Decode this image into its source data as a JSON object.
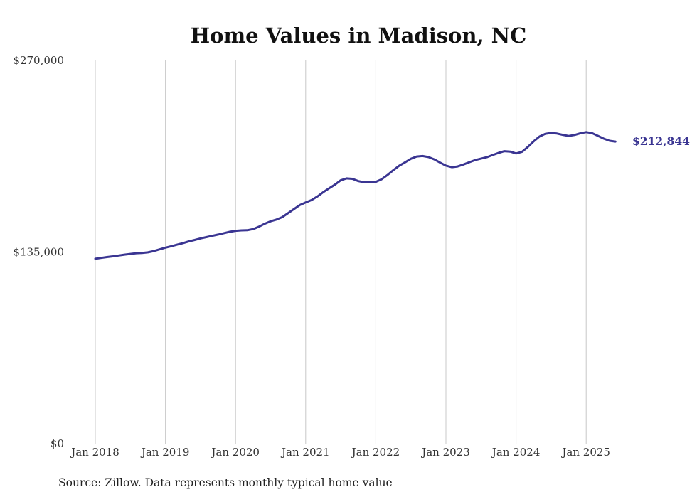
{
  "chart_data": {
    "type": "line",
    "title": "Home Values in Madison, NC",
    "source": "Source: Zillow. Data represents monthly typical home value",
    "ylim": [
      0,
      270000
    ],
    "y_ticks": [
      "$0",
      "$135,000",
      "$270,000"
    ],
    "y_tick_values": [
      0,
      135000,
      270000
    ],
    "x_ticks": [
      "Jan 2018",
      "Jan 2019",
      "Jan 2020",
      "Jan 2021",
      "Jan 2022",
      "Jan 2023",
      "Jan 2024",
      "Jan 2025"
    ],
    "x_tick_dates": [
      "2018-01",
      "2019-01",
      "2020-01",
      "2021-01",
      "2022-01",
      "2023-01",
      "2024-01",
      "2025-01"
    ],
    "grid": "vertical",
    "line_color": "#3a3592",
    "end_label": "$212,844",
    "series": [
      {
        "x": [
          "2018-01",
          "2018-02",
          "2018-03",
          "2018-04",
          "2018-05",
          "2018-06",
          "2018-07",
          "2018-08",
          "2018-09",
          "2018-10",
          "2018-11",
          "2018-12",
          "2019-01",
          "2019-02",
          "2019-03",
          "2019-04",
          "2019-05",
          "2019-06",
          "2019-07",
          "2019-08",
          "2019-09",
          "2019-10",
          "2019-11",
          "2019-12",
          "2020-01",
          "2020-02",
          "2020-03",
          "2020-04",
          "2020-05",
          "2020-06",
          "2020-07",
          "2020-08",
          "2020-09",
          "2020-10",
          "2020-11",
          "2020-12",
          "2021-01",
          "2021-02",
          "2021-03",
          "2021-04",
          "2021-05",
          "2021-06",
          "2021-07",
          "2021-08",
          "2021-09",
          "2021-10",
          "2021-11",
          "2021-12",
          "2022-01",
          "2022-02",
          "2022-03",
          "2022-04",
          "2022-05",
          "2022-06",
          "2022-07",
          "2022-08",
          "2022-09",
          "2022-10",
          "2022-11",
          "2022-12",
          "2023-01",
          "2023-02",
          "2023-03",
          "2023-04",
          "2023-05",
          "2023-06",
          "2023-07",
          "2023-08",
          "2023-09",
          "2023-10",
          "2023-11",
          "2023-12",
          "2024-01",
          "2024-02",
          "2024-03",
          "2024-04",
          "2024-05",
          "2024-06",
          "2024-07",
          "2024-08",
          "2024-09",
          "2024-10",
          "2024-11",
          "2024-12",
          "2025-01",
          "2025-02",
          "2025-03",
          "2025-04",
          "2025-05",
          "2025-06"
        ],
        "values": [
          130300,
          130900,
          131500,
          132000,
          132600,
          133200,
          133700,
          134200,
          134400,
          134800,
          135700,
          136900,
          138100,
          139100,
          140200,
          141300,
          142500,
          143500,
          144600,
          145500,
          146400,
          147300,
          148300,
          149300,
          150000,
          150300,
          150400,
          151200,
          152900,
          155000,
          156700,
          157900,
          159600,
          162400,
          165300,
          168100,
          169900,
          171600,
          174100,
          177200,
          179900,
          182500,
          185600,
          186900,
          186600,
          185000,
          184200,
          184300,
          184500,
          186300,
          189300,
          192700,
          195800,
          198200,
          200700,
          202300,
          202700,
          201900,
          200300,
          198000,
          195900,
          194800,
          195300,
          196700,
          198300,
          199800,
          200800,
          201800,
          203400,
          204900,
          206100,
          205800,
          204500,
          205600,
          209000,
          213000,
          216400,
          218300,
          218900,
          218500,
          217600,
          216800,
          217500,
          218700,
          219500,
          218800,
          216900,
          214900,
          213400,
          212844
        ]
      }
    ]
  }
}
